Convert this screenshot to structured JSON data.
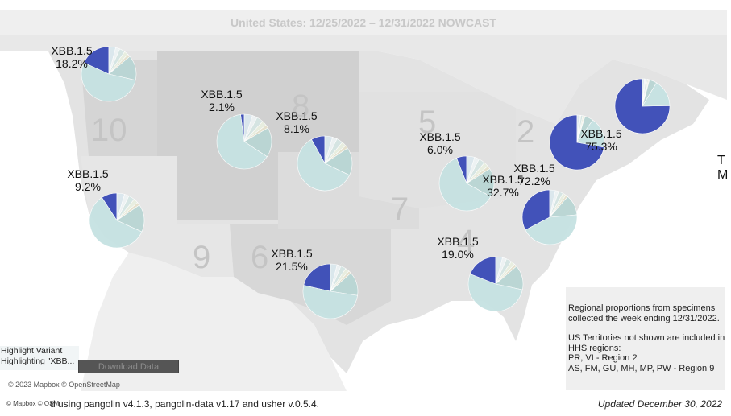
{
  "title": "United States: 12/25/2022 – 12/31/2022 NOWCAST",
  "region_numbers": [
    "10",
    "8",
    "5",
    "2",
    "7",
    "9",
    "6",
    "4"
  ],
  "highlight_variant": "XBB.1.5",
  "colors": {
    "highlight": "#3a4bb7",
    "pie_main": "#c6e2e2",
    "pie_secondary": "#b9d6d4",
    "pie_accents": [
      "#dbe8ee",
      "#eef3f4",
      "#d6e6e4",
      "#e9efe0",
      "#e6e1cc"
    ],
    "land": "#d9d9d9",
    "water": "#ffffff"
  },
  "regions": [
    {
      "name": "Region 10",
      "variant": "XBB.1.5",
      "percent_label": "18.2%",
      "percent": 18.2
    },
    {
      "name": "Region 8",
      "variant": "XBB.1.5",
      "percent_label": "2.1%",
      "percent": 2.1
    },
    {
      "name": "Region 7",
      "variant": "XBB.1.5",
      "percent_label": "8.1%",
      "percent": 8.1
    },
    {
      "name": "Region 9",
      "variant": "XBB.1.5",
      "percent_label": "9.2%",
      "percent": 9.2
    },
    {
      "name": "Region 6",
      "variant": "XBB.1.5",
      "percent_label": "21.5%",
      "percent": 21.5
    },
    {
      "name": "Region 5",
      "variant": "XBB.1.5",
      "percent_label": "6.0%",
      "percent": 6.0
    },
    {
      "name": "Region 4",
      "variant": "XBB.1.5",
      "percent_label": "19.0%",
      "percent": 19.0
    },
    {
      "name": "Region 3",
      "variant": "XBB.1.5",
      "percent_label": "32.7%",
      "percent": 32.7
    },
    {
      "name": "Region 2",
      "variant": "XBB.1.5",
      "percent_label": "72.2%",
      "percent": 72.2
    },
    {
      "name": "Region 1",
      "variant": "XBB.1.5",
      "percent_label": "75.3%",
      "percent": 75.3
    }
  ],
  "info_box": {
    "line1": "Regional proportions from specimens collected the week ending 12/31/2022.",
    "line2": "US Territories not shown are included in HHS regions:",
    "line3": "PR, VI - Region 2",
    "line4": "AS, FM, GU, MH, MP, PW - Region 9"
  },
  "right_cut_text": {
    "line1": "T",
    "line2": "M"
  },
  "highlight_box": {
    "line1": "Highlight Variant",
    "line2": "Highlighting \"XBB..."
  },
  "download_label": "Download Data",
  "map_attribution": "© 2023 Mapbox © OpenStreetMap",
  "footer_small": "© Mapbox © OSM",
  "footer_text": "d using pangolin v4.1.3, pangolin-data v1.17 and usher v.0.5.4.",
  "footer_updated": "Updated December 30, 2022"
}
